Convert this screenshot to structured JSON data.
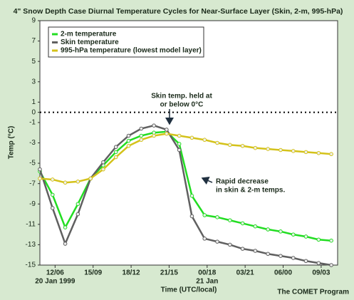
{
  "chart_data": {
    "type": "line",
    "title": "4\" Snow Depth Case Diurnal Temperature Cycles for Near-Surface Layer (Skin, 2-m, 995-hPa)",
    "ylabel": "Temp (°C)",
    "xlabel": "Time (UTC/local)",
    "credit": "The COMET Program",
    "x": [
      0,
      1,
      2,
      3,
      4,
      5,
      6,
      7,
      8,
      9,
      10,
      11,
      12,
      13,
      14,
      15,
      16,
      17,
      18,
      19,
      20,
      21,
      22,
      23
    ],
    "xlim": [
      0,
      23.5
    ],
    "xticks": [
      {
        "value": 1.2,
        "label": "12/06"
      },
      {
        "value": 4.2,
        "label": "15/09"
      },
      {
        "value": 7.2,
        "label": "18/12"
      },
      {
        "value": 10.2,
        "label": "21/15"
      },
      {
        "value": 13.2,
        "label": "00/18"
      },
      {
        "value": 16.2,
        "label": "03/21"
      },
      {
        "value": 19.2,
        "label": "06/00"
      },
      {
        "value": 22.2,
        "label": "09/03"
      }
    ],
    "xtick_dates": [
      {
        "value": 1.2,
        "label": "20 Jan 1999"
      },
      {
        "value": 13.2,
        "label": "21 Jan"
      }
    ],
    "ylim": [
      -15,
      9
    ],
    "yticks": [
      9,
      7,
      5,
      3,
      1,
      0,
      -1,
      -3,
      -5,
      -7,
      -9,
      -11,
      -13,
      -15
    ],
    "reference_line": 0,
    "series": [
      {
        "name": "2-m temperature",
        "color": "#22dd22",
        "values": [
          -5.8,
          -8.1,
          -11.3,
          -9,
          -6.5,
          -5.2,
          -3.9,
          -2.8,
          -2.3,
          -2,
          -1.9,
          -3.1,
          -8.2,
          -10.1,
          -10.3,
          -10.6,
          -10.9,
          -11.2,
          -11.5,
          -11.7,
          -12,
          -12.2,
          -12.5,
          -12.6
        ]
      },
      {
        "name": "Skin temperature",
        "color": "#606060",
        "values": [
          -5.6,
          -9.4,
          -12.9,
          -10,
          -6.5,
          -4.9,
          -3.4,
          -2.3,
          -1.6,
          -1.3,
          -1.7,
          -3.7,
          -10.2,
          -12.4,
          -12.7,
          -13,
          -13.4,
          -13.6,
          -13.9,
          -14.1,
          -14.3,
          -14.6,
          -14.8,
          -15
        ]
      },
      {
        "name": "995-hPa temperature (lowest model layer)",
        "color": "#d4c21a",
        "values": [
          -6.5,
          -6.6,
          -6.9,
          -6.8,
          -6.5,
          -5.6,
          -4.4,
          -3.3,
          -2.7,
          -2.3,
          -2.1,
          -2.3,
          -2.5,
          -2.7,
          -3,
          -3.2,
          -3.3,
          -3.5,
          -3.6,
          -3.7,
          -3.8,
          -3.9,
          -4,
          -4.1
        ]
      }
    ],
    "annotations": [
      [
        "Skin temp. held at",
        "or below 0°C"
      ],
      [
        "Rapid decrease",
        "in skin & 2-m temps."
      ]
    ]
  }
}
